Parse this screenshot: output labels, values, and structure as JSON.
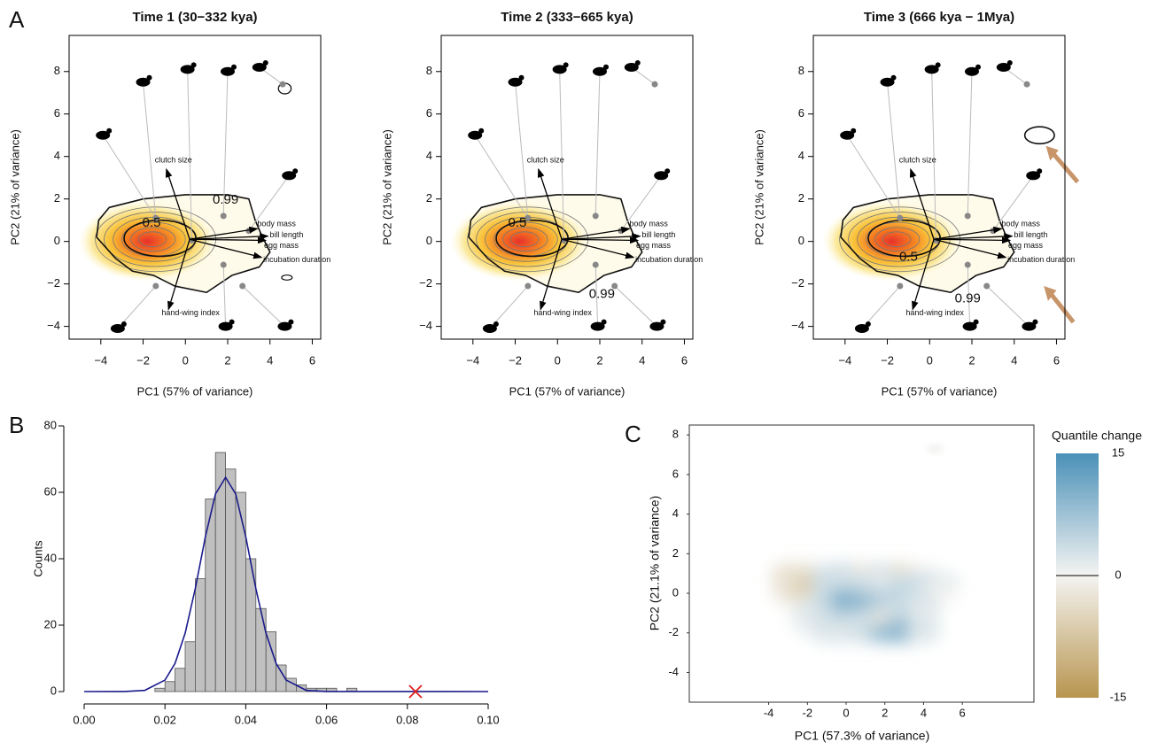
{
  "panel_labels": [
    "A",
    "B",
    "C"
  ],
  "chart_data": [
    {
      "type": "biplot",
      "title": "Time 1 (30−332 kya)",
      "xlabel": "PC1 (57% of variance)",
      "ylabel": "PC2 (21% of variance)",
      "xlim": [
        -5.5,
        6.4
      ],
      "ylim": [
        -4.6,
        9.7
      ],
      "xticks": [
        {
          "value": -4,
          "label": "−4"
        },
        {
          "value": -2,
          "label": "−2"
        },
        0,
        2,
        4,
        6
      ],
      "yticks": [
        {
          "value": -4,
          "label": "−4"
        },
        {
          "value": -2,
          "label": "−2"
        },
        0,
        2,
        4,
        6,
        8
      ],
      "contour_levels": [
        0.5,
        0.99
      ],
      "loadings": {
        "names": [
          "clutch size",
          "body mass",
          "bill length",
          "egg mass",
          "incubation duration",
          "hand-wing index"
        ],
        "x": [
          -0.9,
          3.4,
          3.9,
          3.8,
          3.6,
          -0.8
        ],
        "y": [
          3.4,
          0.6,
          0.25,
          0.05,
          -0.75,
          -3.2
        ]
      },
      "species": {
        "x": [
          -1.4,
          1.8,
          3.0,
          0.3,
          1.8,
          -1.4,
          2.7,
          4.6
        ],
        "y": [
          1.1,
          1.2,
          0.5,
          0.05,
          -1.1,
          -2.1,
          -2.1,
          7.4
        ]
      }
    },
    {
      "type": "biplot",
      "title": "Time 2 (333−665 kya)",
      "xlabel": "PC1 (57% of variance)",
      "ylabel": "PC2 (21% of variance)",
      "xlim": [
        -5.5,
        6.4
      ],
      "ylim": [
        -4.6,
        9.7
      ],
      "xticks": [
        {
          "value": -4,
          "label": "−4"
        },
        {
          "value": -2,
          "label": "−2"
        },
        0,
        2,
        4,
        6
      ],
      "yticks": [
        {
          "value": -4,
          "label": "−4"
        },
        {
          "value": -2,
          "label": "−2"
        },
        0,
        2,
        4,
        6,
        8
      ],
      "contour_levels": [
        0.5,
        0.99
      ],
      "loadings": {
        "names": [
          "clutch size",
          "body mass",
          "bill length",
          "egg mass",
          "incubation duration",
          "hand-wing index"
        ],
        "x": [
          -0.9,
          3.4,
          3.9,
          3.8,
          3.6,
          -0.8
        ],
        "y": [
          3.4,
          0.6,
          0.25,
          0.05,
          -0.75,
          -3.2
        ]
      },
      "species": {
        "x": [
          -1.4,
          1.8,
          3.0,
          0.3,
          1.8,
          -1.4,
          2.7,
          4.6
        ],
        "y": [
          1.1,
          1.2,
          0.5,
          0.05,
          -1.1,
          -2.1,
          -2.1,
          7.4
        ]
      }
    },
    {
      "type": "biplot",
      "title": "Time 3 (666 kya − 1Mya)",
      "xlabel": "PC1 (57% of variance)",
      "ylabel": "PC2 (21% of variance)",
      "xlim": [
        -5.5,
        6.4
      ],
      "ylim": [
        -4.6,
        9.7
      ],
      "xticks": [
        {
          "value": -4,
          "label": "−4"
        },
        {
          "value": -2,
          "label": "−2"
        },
        0,
        2,
        4,
        6
      ],
      "yticks": [
        {
          "value": -4,
          "label": "−4"
        },
        {
          "value": -2,
          "label": "−2"
        },
        0,
        2,
        4,
        6,
        8
      ],
      "contour_levels": [
        0.5,
        0.99
      ],
      "loadings": {
        "names": [
          "clutch size",
          "body mass",
          "bill length",
          "egg mass",
          "incubation duration",
          "hand-wing index"
        ],
        "x": [
          -0.9,
          3.4,
          3.9,
          3.8,
          3.6,
          -0.8
        ],
        "y": [
          3.4,
          0.6,
          0.25,
          0.05,
          -0.75,
          -3.2
        ]
      },
      "species": {
        "x": [
          -1.4,
          1.8,
          3.0,
          0.3,
          1.8,
          -1.4,
          2.7,
          4.6
        ],
        "y": [
          1.1,
          1.2,
          0.5,
          0.05,
          -1.1,
          -2.1,
          -2.1,
          7.4
        ]
      }
    },
    {
      "type": "histogram",
      "ylabel": "Counts",
      "bins": [
        0.0175,
        0.02,
        0.0225,
        0.025,
        0.0275,
        0.03,
        0.0325,
        0.035,
        0.0375,
        0.04,
        0.0425,
        0.045,
        0.0475,
        0.05,
        0.0525,
        0.055,
        0.0575,
        0.06,
        0.0625,
        0.065,
        0.0675
      ],
      "counts": [
        1,
        3,
        7,
        15,
        34,
        58,
        72,
        67,
        60,
        40,
        25,
        18,
        8,
        4,
        2,
        1,
        1,
        1,
        0,
        1
      ],
      "color": "#c0c0c0",
      "curve": {
        "color": "#1a1a8c",
        "x": [
          0,
          0.01,
          0.015,
          0.02,
          0.0225,
          0.025,
          0.0275,
          0.03,
          0.0325,
          0.035,
          0.0375,
          0.04,
          0.0425,
          0.045,
          0.0475,
          0.05,
          0.055,
          0.06,
          0.1
        ],
        "y": [
          0,
          0.02,
          0.36,
          3.45,
          8.5,
          17.6,
          31.0,
          46.6,
          59.5,
          64.5,
          59.5,
          46.6,
          31.0,
          17.6,
          8.5,
          3.45,
          0.36,
          0.02,
          0
        ]
      },
      "marker": {
        "color": "#e02020",
        "x": 0.082,
        "y": 0
      },
      "xlim": [
        0,
        0.1
      ],
      "ylim": [
        0,
        80
      ],
      "xticks": [
        {
          "value": 0,
          "label": "0.00"
        },
        {
          "value": 0.02,
          "label": "0.02"
        },
        {
          "value": 0.04,
          "label": "0.04"
        },
        {
          "value": 0.06,
          "label": "0.06"
        },
        {
          "value": 0.08,
          "label": "0.08"
        },
        {
          "value": 0.1,
          "label": "0.10"
        }
      ],
      "yticks": [
        0,
        20,
        40,
        60,
        80
      ]
    },
    {
      "type": "heatmap",
      "xlabel": "PC1 (57.3% of variance)",
      "ylabel": "PC2 (21.1% of variance)",
      "xlim": [
        -8.1,
        9.7
      ],
      "ylim": [
        -5.5,
        8.5
      ],
      "xticks": [
        -4,
        -2,
        0,
        2,
        4,
        6
      ],
      "yticks": [
        -4,
        -2,
        0,
        2,
        4,
        6,
        8
      ],
      "x": [
        -3,
        -2,
        -1,
        0,
        1,
        2,
        3,
        4,
        5
      ],
      "y": [
        1,
        0.5,
        0,
        -0.5,
        -1,
        -1.5,
        -2
      ],
      "z": [
        [
          -3,
          -3,
          2,
          4,
          -2,
          3,
          -4,
          0,
          null
        ],
        [
          -3,
          -5,
          4,
          2,
          3,
          1,
          3,
          4,
          2
        ],
        [
          -2,
          -7,
          3,
          6,
          4,
          3,
          5,
          2,
          0
        ],
        [
          null,
          -2,
          5,
          12,
          10,
          6,
          4,
          3,
          null
        ],
        [
          null,
          2,
          3,
          8,
          7,
          4,
          3,
          1,
          null
        ],
        [
          null,
          1,
          3,
          4,
          3,
          -2,
          6,
          2,
          null
        ],
        [
          null,
          null,
          2,
          2,
          3,
          8,
          9,
          2,
          null
        ]
      ],
      "extra_points": {
        "x": [
          4.6
        ],
        "y": [
          7.3
        ],
        "z": [
          0
        ]
      },
      "colorbar_title": "Quantile change",
      "zlim": [
        -15,
        15
      ],
      "zticks": [
        15,
        0,
        -15
      ],
      "colors": {
        "high": "#4a90b8",
        "mid": "#f4f4f2",
        "low": "#b8954f"
      }
    }
  ]
}
